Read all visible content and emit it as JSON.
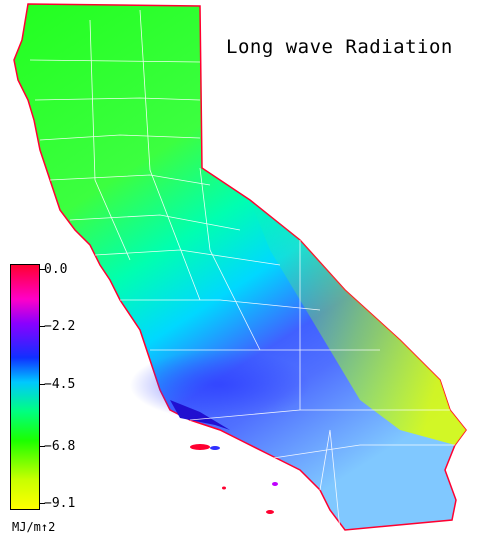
{
  "title": "Long wave Radiation",
  "legend": {
    "unit": "MJ/m↑2",
    "ticks": [
      "0.0",
      "−2.2",
      "−4.5",
      "−6.8",
      "−9.1"
    ],
    "colors": {
      "max": "#ff0030",
      "mid_high": "#ff00c8",
      "mid": "#1030ff",
      "mid_low": "#00ff80",
      "min": "#ffff00"
    }
  }
}
